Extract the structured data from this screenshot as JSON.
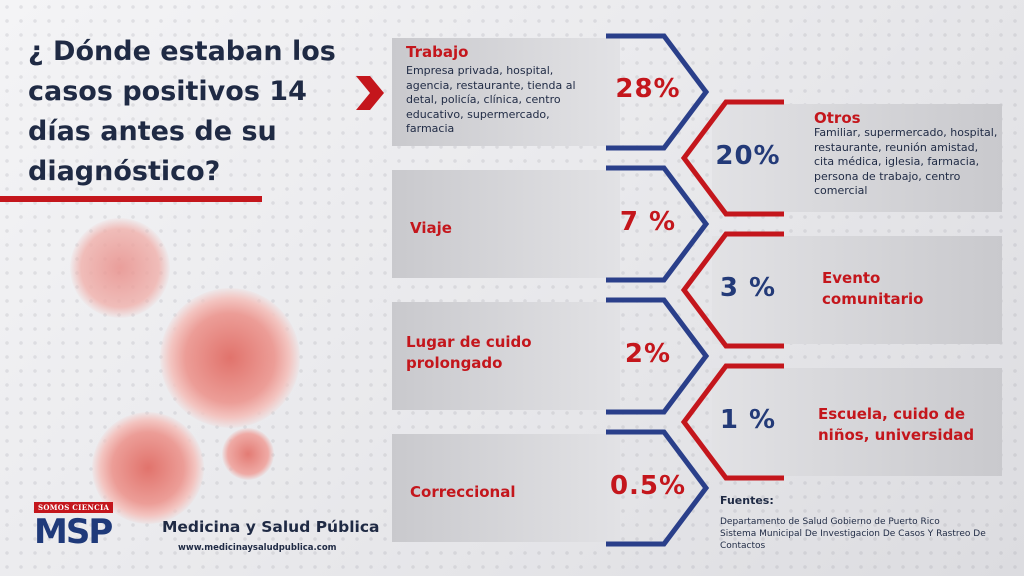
{
  "title": "¿ Dónde estaban los casos positivos 14 días antes de su diagnóstico?",
  "items": [
    {
      "label": "Trabajo",
      "description": "Empresa privada, hospital, agencia, restaurante, tienda al detal, policía, clínica, centro educativo, supermercado, farmacia",
      "percent": "28%"
    },
    {
      "label": "Otros",
      "description": "Familiar, supermercado, hospital, restaurante, reunión amistad, cita médica, iglesia, farmacia, persona de trabajo, centro comercial",
      "percent": "20%"
    },
    {
      "label": "Viaje",
      "percent": "7 %"
    },
    {
      "label": "Evento comunitario",
      "percent": "3 %"
    },
    {
      "label": "Lugar de cuido prolongado",
      "percent": "2%"
    },
    {
      "label": "Escuela, cuido de niños, universidad",
      "percent": "1 %"
    },
    {
      "label": "Correccional",
      "percent": "0.5%"
    }
  ],
  "sources": {
    "title": "Fuentes:",
    "lines": [
      "Departamento de Salud Gobierno de Puerto Rico",
      "Sistema Municipal De Investigacion De Casos Y Rastreo De Contactos"
    ]
  },
  "logo": {
    "tagline": "SOMOS CIENCIA",
    "mark": "MSP",
    "name": "Medicina y Salud Pública",
    "url": "www.medicinaysaludpublica.com"
  },
  "colors": {
    "accent_red": "#c4161c",
    "navy": "#1f2a44",
    "blue": "#233a78"
  },
  "icons": [
    "virus-illustration",
    "chevron-arrow-icon",
    "caduceus-icon"
  ]
}
